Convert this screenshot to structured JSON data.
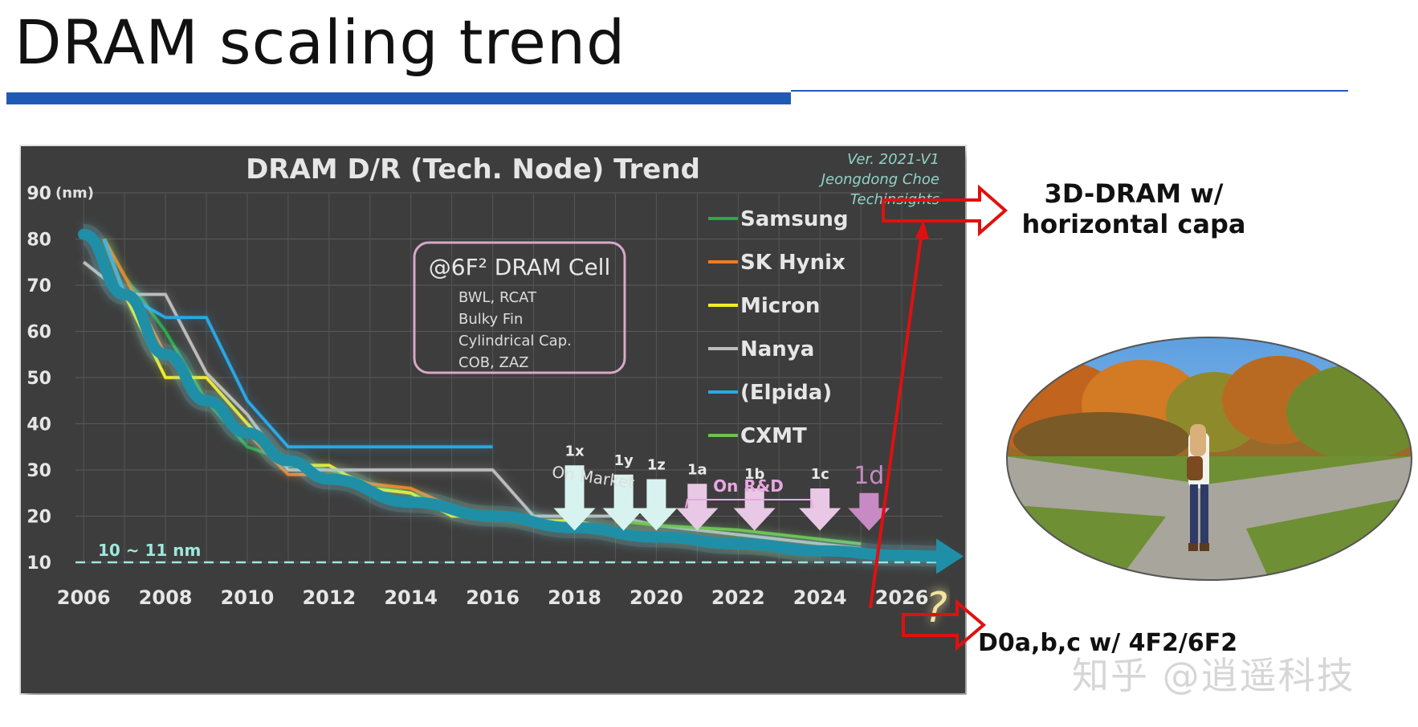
{
  "slide": {
    "title": "DRAM scaling trend"
  },
  "side_labels": {
    "top": [
      "3D-DRAM w/",
      "horizontal capa"
    ],
    "bottom": "D0a,b,c w/ 4F2/6F2"
  },
  "watermark": "知乎 @逍遥科技",
  "colors": {
    "title_bar": "#1f5bb5",
    "chart_bg": "#3c3c3c",
    "trend_arrow": "#1f8fa8",
    "red_arrow": "#e01010"
  },
  "chart_data": {
    "type": "line",
    "title": "DRAM D/R (Tech. Node) Trend",
    "credit": [
      "Ver. 2021-V1",
      "Jeongdong Choe",
      "Techinsights"
    ],
    "yunit": "(nm)",
    "ylim": [
      10,
      90
    ],
    "yticks": [
      10,
      20,
      30,
      40,
      50,
      60,
      70,
      80,
      90
    ],
    "xlim": [
      2005.8,
      2027
    ],
    "xticks": [
      2006,
      2008,
      2010,
      2012,
      2014,
      2016,
      2018,
      2020,
      2022,
      2024,
      2026
    ],
    "grid": true,
    "legend_position": "right",
    "series": [
      {
        "name": "Samsung",
        "color": "#2aa84a",
        "points": [
          [
            2006.5,
            80
          ],
          [
            2007,
            72
          ],
          [
            2008,
            60
          ],
          [
            2009,
            45
          ],
          [
            2010,
            35
          ],
          [
            2011,
            32
          ],
          [
            2012,
            30
          ],
          [
            2013,
            27
          ],
          [
            2014,
            25
          ],
          [
            2015,
            22
          ],
          [
            2016,
            20
          ],
          [
            2017,
            19
          ],
          [
            2018,
            18
          ],
          [
            2019,
            17
          ],
          [
            2020,
            16
          ],
          [
            2021,
            15
          ],
          [
            2022,
            14
          ],
          [
            2023,
            13
          ],
          [
            2024,
            12
          ]
        ]
      },
      {
        "name": "SK Hynix",
        "color": "#f07b22",
        "points": [
          [
            2006.5,
            80
          ],
          [
            2007,
            72
          ],
          [
            2008,
            55
          ],
          [
            2009,
            45
          ],
          [
            2010,
            38
          ],
          [
            2011,
            29
          ],
          [
            2012,
            29
          ],
          [
            2013,
            27
          ],
          [
            2014,
            26
          ],
          [
            2015,
            22
          ],
          [
            2016,
            20
          ],
          [
            2017,
            19
          ],
          [
            2018,
            18
          ],
          [
            2019,
            17
          ],
          [
            2020,
            16
          ],
          [
            2021,
            15
          ],
          [
            2022,
            14
          ],
          [
            2023,
            13
          ],
          [
            2024,
            12
          ]
        ]
      },
      {
        "name": "Micron",
        "color": "#f2ee22",
        "points": [
          [
            2006.5,
            80
          ],
          [
            2007,
            68
          ],
          [
            2008,
            50
          ],
          [
            2009,
            50
          ],
          [
            2010,
            40
          ],
          [
            2011,
            31
          ],
          [
            2012,
            31
          ],
          [
            2013,
            26
          ],
          [
            2014,
            25
          ],
          [
            2015,
            20
          ],
          [
            2016,
            20
          ],
          [
            2017,
            19
          ],
          [
            2018,
            19
          ],
          [
            2019,
            17
          ],
          [
            2020,
            16
          ],
          [
            2021,
            15
          ],
          [
            2022,
            14
          ],
          [
            2023,
            13
          ],
          [
            2024,
            12
          ]
        ]
      },
      {
        "name": "Nanya",
        "color": "#bdbdbd",
        "points": [
          [
            2006,
            75
          ],
          [
            2007,
            68
          ],
          [
            2008,
            68
          ],
          [
            2009,
            51
          ],
          [
            2010,
            42
          ],
          [
            2011,
            30
          ],
          [
            2012,
            30
          ],
          [
            2013,
            30
          ],
          [
            2014,
            30
          ],
          [
            2015,
            30
          ],
          [
            2016,
            30
          ],
          [
            2017,
            20
          ],
          [
            2018,
            20
          ],
          [
            2019,
            20
          ],
          [
            2020,
            18
          ],
          [
            2021,
            17
          ],
          [
            2022,
            16
          ],
          [
            2023,
            15
          ],
          [
            2024,
            14
          ],
          [
            2025,
            13
          ]
        ]
      },
      {
        "name": "(Elpida)",
        "color": "#29a8e6",
        "points": [
          [
            2006.5,
            80
          ],
          [
            2007,
            68
          ],
          [
            2008,
            63
          ],
          [
            2009,
            63
          ],
          [
            2010,
            45
          ],
          [
            2011,
            35
          ],
          [
            2012,
            35
          ],
          [
            2013,
            35
          ],
          [
            2014,
            35
          ],
          [
            2015,
            35
          ],
          [
            2016,
            35
          ]
        ]
      },
      {
        "name": "CXMT",
        "color": "#6dc24a",
        "points": [
          [
            2019,
            19
          ],
          [
            2020,
            18
          ],
          [
            2021,
            17.5
          ],
          [
            2022,
            17
          ],
          [
            2023,
            16
          ],
          [
            2024,
            15
          ],
          [
            2025,
            14
          ]
        ]
      }
    ],
    "trend_curve": [
      [
        2006,
        81
      ],
      [
        2007,
        68
      ],
      [
        2008,
        55
      ],
      [
        2009,
        45
      ],
      [
        2010,
        38
      ],
      [
        2011,
        32
      ],
      [
        2012,
        28
      ],
      [
        2014,
        23
      ],
      [
        2016,
        20
      ],
      [
        2018,
        17.5
      ],
      [
        2020,
        15.5
      ],
      [
        2022,
        14
      ],
      [
        2024,
        12.5
      ],
      [
        2026,
        11.5
      ],
      [
        2027,
        11.3
      ]
    ],
    "reference_line": {
      "y": 10,
      "label": "10 ~ 11 nm"
    },
    "cell_box": {
      "heading": "@6F² DRAM Cell",
      "lines": [
        "BWL, RCAT",
        "Bulky Fin",
        "Cylindrical Cap.",
        "COB, ZAZ"
      ]
    },
    "groups": [
      {
        "label": "On Market",
        "nodes": [
          "1x",
          "1y",
          "1z"
        ]
      },
      {
        "label": "On R&D",
        "nodes": [
          "1a",
          "1b",
          "1c"
        ]
      }
    ],
    "node_arrows": [
      {
        "label": "1x",
        "x": 2018,
        "top": 31,
        "color": "#d8f3ef"
      },
      {
        "label": "1y",
        "x": 2019.2,
        "top": 29,
        "color": "#d8f3ef"
      },
      {
        "label": "1z",
        "x": 2020,
        "top": 28,
        "color": "#d8f3ef"
      },
      {
        "label": "1a",
        "x": 2021,
        "top": 27,
        "color": "#e8c8e4"
      },
      {
        "label": "1b",
        "x": 2022.4,
        "top": 26,
        "color": "#e8c8e4"
      },
      {
        "label": "1c",
        "x": 2024,
        "top": 26,
        "color": "#e8c8e4"
      },
      {
        "label": "1d",
        "x": 2025.2,
        "top": 25,
        "color": "#c88ac4"
      }
    ],
    "question_mark": "?"
  }
}
